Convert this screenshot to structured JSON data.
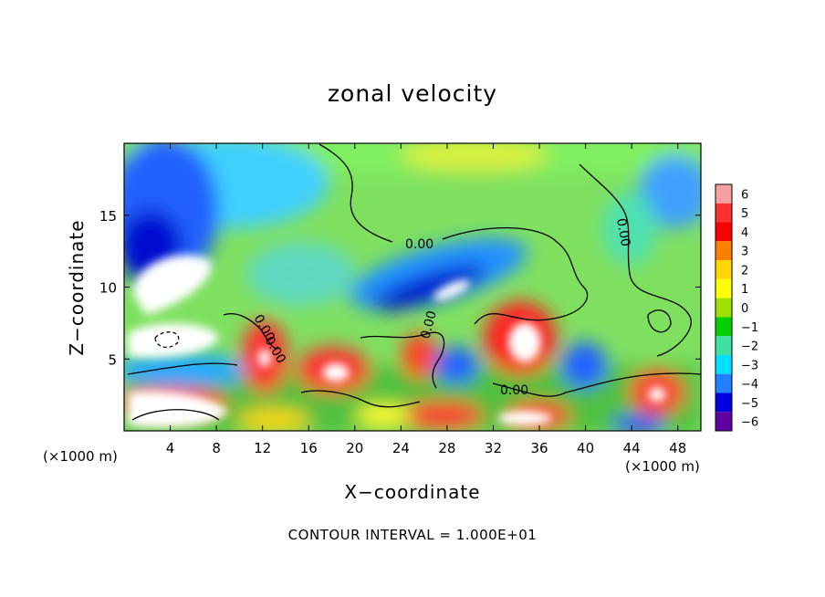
{
  "chart_data": {
    "type": "heatmap",
    "title": "zonal velocity",
    "xlabel": "X−coordinate",
    "ylabel": "Z−coordinate",
    "x_unit": "(×1000 m)",
    "x_ticks": [
      4,
      8,
      12,
      16,
      20,
      24,
      28,
      32,
      36,
      40,
      44,
      48
    ],
    "y_ticks": [
      5,
      10,
      15
    ],
    "xlim": [
      0,
      50
    ],
    "ylim": [
      0,
      20
    ],
    "colorbar": {
      "levels": [
        6,
        5,
        4,
        3,
        2,
        1,
        0,
        -1,
        -2,
        -3,
        -4,
        -5,
        -6
      ],
      "labels": [
        "6",
        "5",
        "4",
        "3",
        "2",
        "1",
        "0",
        "−1",
        "−2",
        "−3",
        "−4",
        "−5",
        "−6"
      ],
      "colors": [
        "#f5a0a0",
        "#ff3030",
        "#ff0000",
        "#ff8000",
        "#ffd700",
        "#ffff00",
        "#a0e000",
        "#00d000",
        "#40e0a0",
        "#00e0ff",
        "#2080ff",
        "#0000e0",
        "#6000a0"
      ]
    },
    "contour_labels": [
      "0.00",
      "0.00",
      "0.00",
      "0.00",
      "0.00",
      "0.00"
    ],
    "contour_interval_text": "CONTOUR INTERVAL = 1.000E+01",
    "grid": false
  }
}
